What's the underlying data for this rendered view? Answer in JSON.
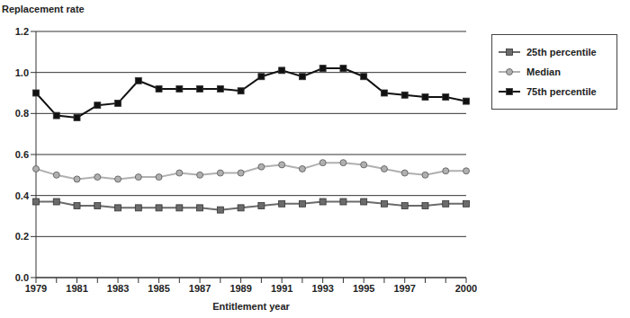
{
  "chart_data": {
    "type": "line",
    "y_label": "Replacement rate",
    "x_label": "Entitlement year",
    "categories": [
      "1979",
      null,
      "1981",
      null,
      "1983",
      null,
      "1985",
      null,
      "1987",
      null,
      "1989",
      null,
      "1991",
      null,
      "1993",
      null,
      "1995",
      null,
      "1997",
      null,
      null,
      "2000"
    ],
    "series": [
      {
        "name": "25th percentile",
        "color": "#6b6b6b",
        "marker": "square",
        "values": [
          0.37,
          0.37,
          0.35,
          0.35,
          0.34,
          0.34,
          0.34,
          0.34,
          0.34,
          0.33,
          0.34,
          0.35,
          0.36,
          0.36,
          0.37,
          0.37,
          0.37,
          0.36,
          0.35,
          0.35,
          0.36,
          0.36
        ]
      },
      {
        "name": "Median",
        "color": "#b0b0b0",
        "marker": "circle",
        "values": [
          0.53,
          0.5,
          0.48,
          0.49,
          0.48,
          0.49,
          0.49,
          0.51,
          0.5,
          0.51,
          0.51,
          0.54,
          0.55,
          0.53,
          0.56,
          0.56,
          0.55,
          0.53,
          0.51,
          0.5,
          0.52,
          0.52
        ]
      },
      {
        "name": "75th percentile",
        "color": "#111111",
        "marker": "square",
        "values": [
          0.9,
          0.79,
          0.78,
          0.84,
          0.85,
          0.96,
          0.92,
          0.92,
          0.92,
          0.92,
          0.91,
          0.98,
          1.01,
          0.98,
          1.02,
          1.02,
          0.98,
          0.9,
          0.89,
          0.88,
          0.88,
          0.86
        ]
      }
    ],
    "ylim": [
      0,
      1.2
    ],
    "yticks": [
      {
        "value": 0,
        "label": "0.0"
      },
      {
        "value": 0.2,
        "label": "0.2"
      },
      {
        "value": 0.4,
        "label": "0.4"
      },
      {
        "value": 0.6,
        "label": "0.6"
      },
      {
        "value": 0.8,
        "label": "0.8"
      },
      {
        "value": 1,
        "label": "1.0"
      },
      {
        "value": 1.2,
        "label": "1.2"
      }
    ],
    "grid": true,
    "legend": "top right"
  }
}
